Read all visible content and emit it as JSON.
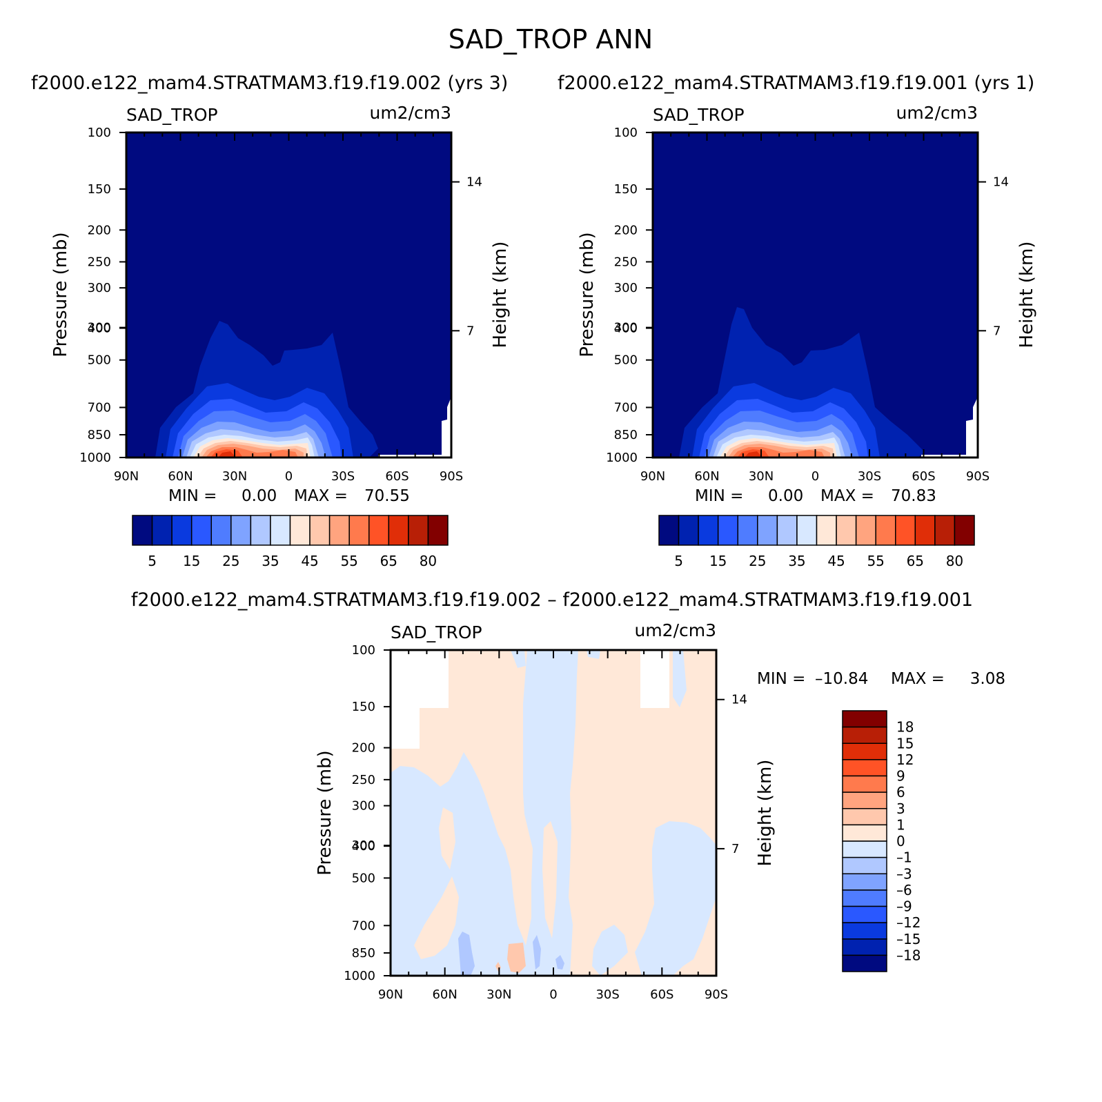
{
  "figure": {
    "title": "SAD_TROP ANN",
    "panel1_subtitle": "f2000.e122_mam4.STRATMAM3.f19.f19.002 (yrs 3)",
    "panel2_subtitle": "f2000.e122_mam4.STRATMAM3.f19.f19.001 (yrs 1)",
    "diff_subtitle": "f2000.e122_mam4.STRATMAM3.f19.f19.002 – f2000.e122_mam4.STRATMAM3.f19.f19.001"
  },
  "colors": {
    "field_levels": [
      "#000a80",
      "#0022b0",
      "#0a3adf",
      "#2a58ff",
      "#4f7cff",
      "#7fa3ff",
      "#b0c8ff",
      "#d8e8ff",
      "#ffe8d8",
      "#ffc8ad",
      "#ffa47f",
      "#ff7a4d",
      "#ff5326",
      "#e02e08",
      "#b81f06",
      "#820000"
    ],
    "diff_levels": [
      "#820000",
      "#b81f06",
      "#e02e08",
      "#ff5326",
      "#ff7a4d",
      "#ffa47f",
      "#ffc8ad",
      "#ffe8d8",
      "#d8e8ff",
      "#b0c8ff",
      "#7fa3ff",
      "#4f7cff",
      "#2a58ff",
      "#0a3adf",
      "#0022b0",
      "#000a80"
    ]
  },
  "chart_data": [
    {
      "type": "contour",
      "panel": "model-002",
      "variable": "SAD_TROP",
      "units": "um2/cm3",
      "xlabel": "",
      "ylabel": "Pressure (mb)",
      "ylabel_right": "Height (km)",
      "x_tick_labels": [
        "90N",
        "60N",
        "30N",
        "0",
        "30S",
        "60S",
        "90S"
      ],
      "y_tick_labels": [
        "100",
        "150",
        "200",
        "250",
        "300",
        "300",
        "400",
        "500",
        "700",
        "850",
        "1000"
      ],
      "y_right_tick_labels": [
        "14",
        "7"
      ],
      "min_label": "MIN =",
      "min_value": "0.00",
      "max_label": "MAX =",
      "max_value": "70.55",
      "colorbar_labels": [
        "5",
        "15",
        "25",
        "35",
        "45",
        "55",
        "65",
        "80"
      ],
      "colorbar_orientation": "horizontal"
    },
    {
      "type": "contour",
      "panel": "model-001",
      "variable": "SAD_TROP",
      "units": "um2/cm3",
      "xlabel": "",
      "ylabel": "Pressure (mb)",
      "ylabel_right": "Height (km)",
      "x_tick_labels": [
        "90N",
        "60N",
        "30N",
        "0",
        "30S",
        "60S",
        "90S"
      ],
      "y_tick_labels": [
        "100",
        "150",
        "200",
        "250",
        "300",
        "300",
        "400",
        "500",
        "700",
        "850",
        "1000"
      ],
      "y_right_tick_labels": [
        "14",
        "7"
      ],
      "min_label": "MIN =",
      "min_value": "0.00",
      "max_label": "MAX =",
      "max_value": "70.83",
      "colorbar_labels": [
        "5",
        "15",
        "25",
        "35",
        "45",
        "55",
        "65",
        "80"
      ],
      "colorbar_orientation": "horizontal"
    },
    {
      "type": "contour",
      "panel": "difference",
      "variable": "SAD_TROP",
      "units": "um2/cm3",
      "xlabel": "",
      "ylabel": "Pressure (mb)",
      "ylabel_right": "Height (km)",
      "x_tick_labels": [
        "90N",
        "60N",
        "30N",
        "0",
        "30S",
        "60S",
        "90S"
      ],
      "y_tick_labels": [
        "100",
        "150",
        "200",
        "250",
        "300",
        "300",
        "400",
        "500",
        "700",
        "850",
        "1000"
      ],
      "y_right_tick_labels": [
        "14",
        "7"
      ],
      "min_label": "MIN =",
      "min_value": "–10.84",
      "max_label": "MAX =",
      "max_value": "3.08",
      "colorbar_labels": [
        "18",
        "15",
        "12",
        "9",
        "6",
        "3",
        "1",
        "0",
        "–1",
        "–3",
        "–6",
        "–9",
        "–12",
        "–15",
        "–18"
      ],
      "colorbar_orientation": "vertical"
    }
  ]
}
